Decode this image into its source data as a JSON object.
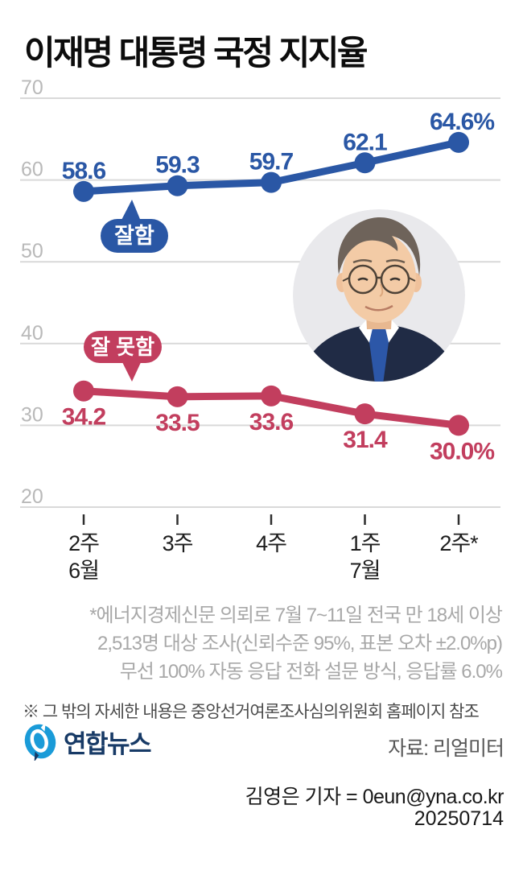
{
  "title": "이재명 대통령 국정 지지율",
  "colors": {
    "approve_blue": "#2a57a5",
    "disapprove_red": "#c23e5e",
    "grid": "#d9d9d9",
    "y_tick_label": "#b9b9b9",
    "x_tick_label": "#1d1d1d",
    "logo_blue": "#1a9bd8",
    "logo_navy": "#173a66"
  },
  "chart_data": {
    "type": "line",
    "title": "이재명 대통령 국정 지지율",
    "categories": [
      "2주 6월",
      "3주",
      "4주",
      "1주 7월",
      "2주*"
    ],
    "x_tick_labels": [
      [
        "2주",
        "6월"
      ],
      [
        "3주"
      ],
      [
        "4주"
      ],
      [
        "1주",
        "7월"
      ],
      [
        "2주*"
      ]
    ],
    "y_ticks": [
      70,
      60,
      50,
      40,
      30,
      20
    ],
    "ylim": [
      20,
      70
    ],
    "grid": "on",
    "series": [
      {
        "name": "잘함",
        "color": "#2a57a5",
        "values": [
          58.6,
          59.3,
          59.7,
          62.1,
          64.6
        ],
        "labels": [
          "58.6",
          "59.3",
          "59.7",
          "62.1",
          "64.6%"
        ],
        "label_position": "above"
      },
      {
        "name": "잘 못함",
        "color": "#c23e5e",
        "values": [
          34.2,
          33.5,
          33.6,
          31.4,
          30.0
        ],
        "labels": [
          "34.2",
          "33.5",
          "33.6",
          "31.4",
          "30.0%"
        ],
        "label_position": "below"
      }
    ]
  },
  "footnote_lines": [
    "*에너지경제신문 의뢰로 7월 7~11일 전국 만 18세 이상",
    "2,513명 대상 조사(신뢰수준 95%, 표본 오차 ±2.0%p)",
    "무선 100% 자동 응답 전화 설문 방식, 응답률 6.0%"
  ],
  "notice": "※ 그 밖의 자세한 내용은 중앙선거여론조사심의위원회 홈페이지 참조",
  "logo_text": "연합뉴스",
  "source": "자료: 리얼미터",
  "credit": "김영은 기자 = 0eun@yna.co.kr",
  "date": "20250714"
}
